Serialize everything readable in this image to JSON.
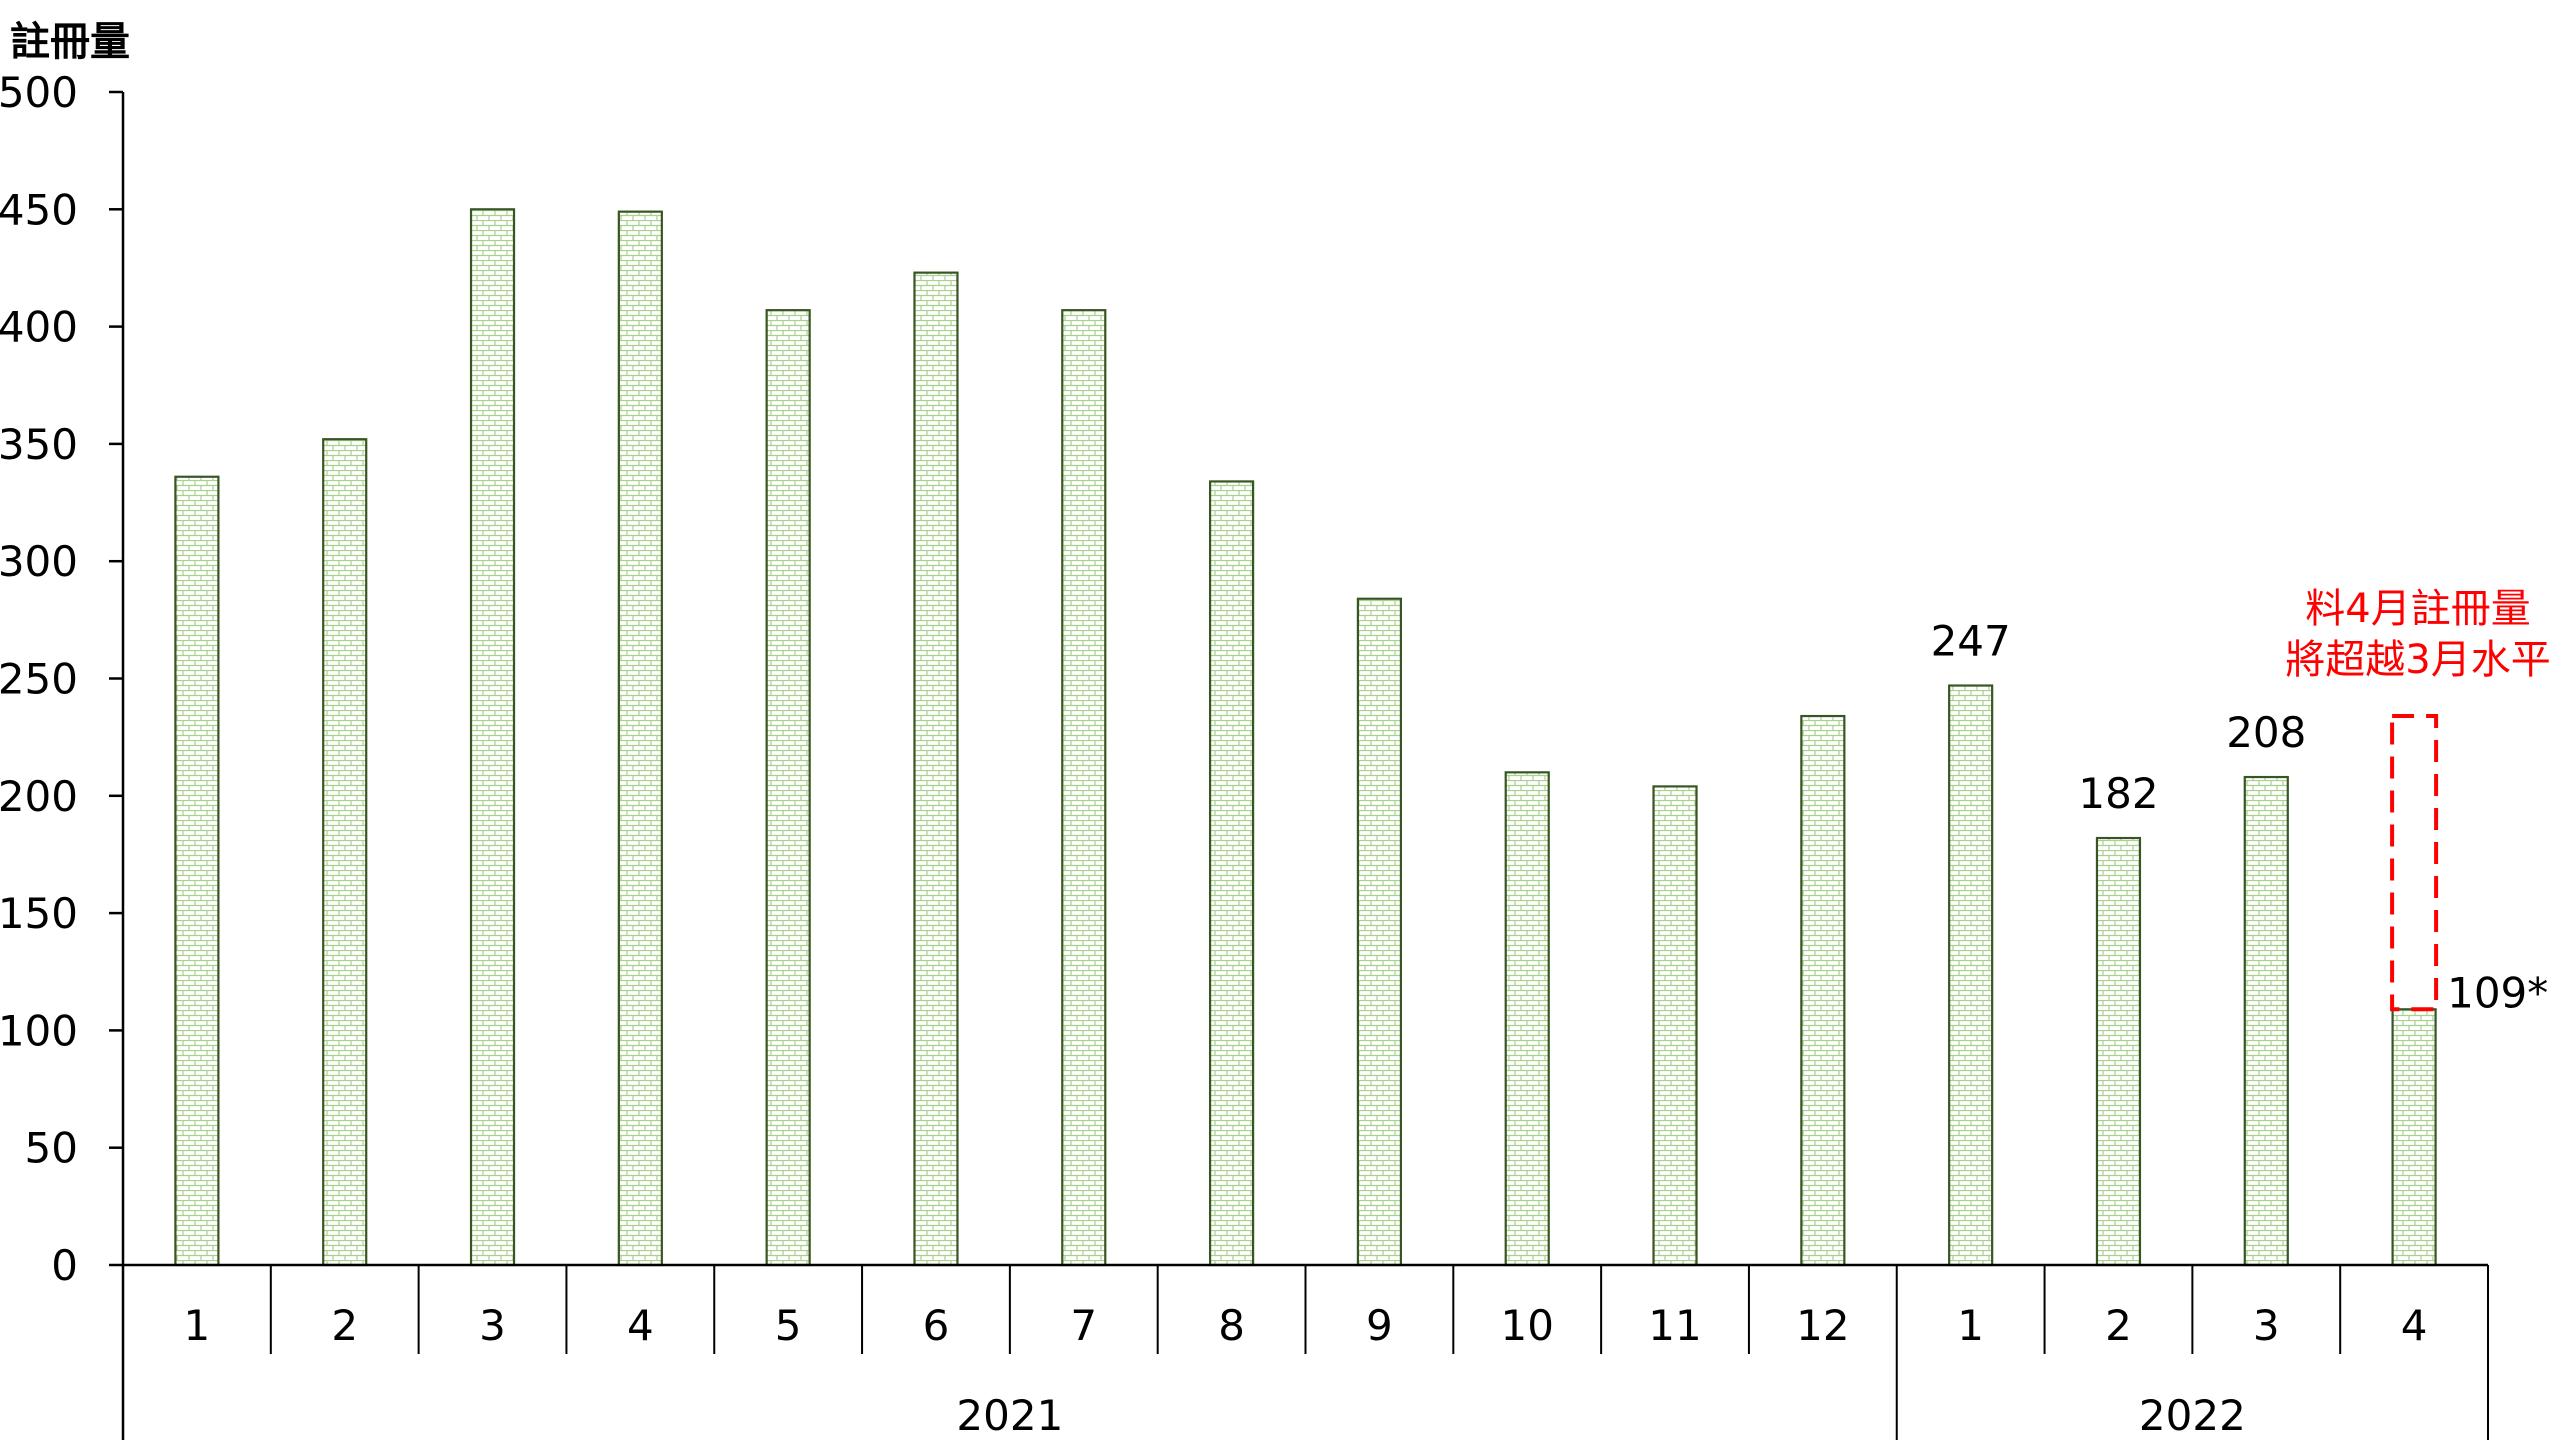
{
  "chart_data": {
    "type": "bar",
    "title": "",
    "ylabel": "註冊量",
    "xlabel": "",
    "ylim": [
      0,
      500
    ],
    "yticks": [
      "0",
      "50",
      "100",
      "150",
      "200",
      "250",
      "300",
      "350",
      "400",
      "450",
      "500"
    ],
    "categories": [
      "1",
      "2",
      "3",
      "4",
      "5",
      "6",
      "7",
      "8",
      "9",
      "10",
      "11",
      "12",
      "1",
      "2",
      "3",
      "4"
    ],
    "groups": [
      {
        "label": "2021",
        "count": 12
      },
      {
        "label": "2022",
        "count": 4
      }
    ],
    "values": [
      336,
      352,
      450,
      449,
      407,
      423,
      407,
      334,
      284,
      210,
      204,
      234,
      247,
      182,
      208,
      109
    ],
    "data_labels": [
      {
        "index": 12,
        "text": "247"
      },
      {
        "index": 13,
        "text": "182"
      },
      {
        "index": 14,
        "text": "208"
      },
      {
        "index": 15,
        "text": "109*"
      }
    ],
    "annotation": {
      "lines": [
        "料4月註冊量",
        "將超越3月水平"
      ],
      "color": "#ff0000",
      "dashed_box_index": 15,
      "dashed_box_top_value": 234
    },
    "grid": false,
    "legend": "none",
    "colors": {
      "bar_fill": "#e2efda",
      "bar_pattern": "#a9d08e",
      "bar_border": "#375623",
      "axis": "#000000"
    }
  }
}
